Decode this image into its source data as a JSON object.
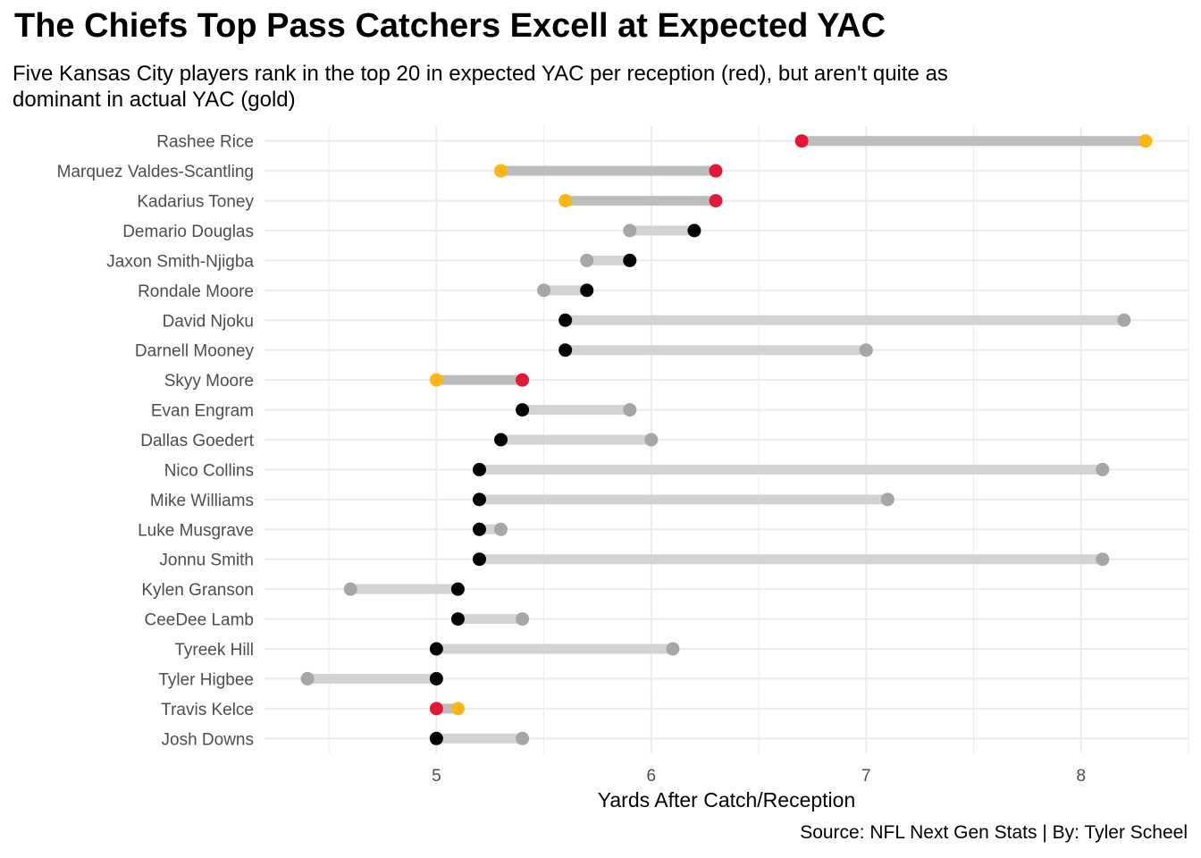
{
  "title": "The Chiefs Top Pass Catchers Excell at Expected YAC",
  "subtitle": "Five Kansas City players rank in the top 20 in expected YAC per reception (red), but aren't quite as\n dominant in actual YAC (gold)",
  "caption": "Source: NFL Next Gen Stats | By: Tyler Scheel",
  "colors": {
    "expected_chiefs": "#E31837",
    "actual_chiefs": "#FFB612",
    "expected_other": "#000000",
    "actual_other": "#A6A6A6",
    "segment_chiefs": "#BDBDBD",
    "segment_other": "#D3D3D3",
    "grid": "#EBEBEB"
  },
  "chart_data": {
    "type": "dumbbell",
    "xlabel": "Yards After Catch/Reception",
    "ylabel": "",
    "xlim": [
      4.2,
      8.5
    ],
    "xticks": [
      5,
      6,
      7,
      8
    ],
    "grid": true,
    "series": [
      {
        "name": "expected YAC per reception"
      },
      {
        "name": "actual YAC"
      }
    ],
    "players": [
      {
        "name": "Rashee Rice",
        "expected": 6.7,
        "actual": 8.3,
        "chiefs": true
      },
      {
        "name": "Marquez Valdes-Scantling",
        "expected": 6.3,
        "actual": 5.3,
        "chiefs": true
      },
      {
        "name": "Kadarius Toney",
        "expected": 6.3,
        "actual": 5.6,
        "chiefs": true
      },
      {
        "name": "Demario Douglas",
        "expected": 6.2,
        "actual": 5.9,
        "chiefs": false
      },
      {
        "name": "Jaxon Smith-Njigba",
        "expected": 5.9,
        "actual": 5.7,
        "chiefs": false
      },
      {
        "name": "Rondale Moore",
        "expected": 5.7,
        "actual": 5.5,
        "chiefs": false
      },
      {
        "name": "David Njoku",
        "expected": 5.6,
        "actual": 8.2,
        "chiefs": false
      },
      {
        "name": "Darnell Mooney",
        "expected": 5.6,
        "actual": 7.0,
        "chiefs": false
      },
      {
        "name": "Skyy Moore",
        "expected": 5.4,
        "actual": 5.0,
        "chiefs": true
      },
      {
        "name": "Evan Engram",
        "expected": 5.4,
        "actual": 5.9,
        "chiefs": false
      },
      {
        "name": "Dallas Goedert",
        "expected": 5.3,
        "actual": 6.0,
        "chiefs": false
      },
      {
        "name": "Nico Collins",
        "expected": 5.2,
        "actual": 8.1,
        "chiefs": false
      },
      {
        "name": "Mike Williams",
        "expected": 5.2,
        "actual": 7.1,
        "chiefs": false
      },
      {
        "name": "Luke Musgrave",
        "expected": 5.2,
        "actual": 5.3,
        "chiefs": false
      },
      {
        "name": "Jonnu Smith",
        "expected": 5.2,
        "actual": 8.1,
        "chiefs": false
      },
      {
        "name": "Kylen Granson",
        "expected": 5.1,
        "actual": 4.6,
        "chiefs": false
      },
      {
        "name": "CeeDee Lamb",
        "expected": 5.1,
        "actual": 5.4,
        "chiefs": false
      },
      {
        "name": "Tyreek Hill",
        "expected": 5.0,
        "actual": 6.1,
        "chiefs": false
      },
      {
        "name": "Tyler Higbee",
        "expected": 5.0,
        "actual": 4.4,
        "chiefs": false
      },
      {
        "name": "Travis Kelce",
        "expected": 5.0,
        "actual": 5.1,
        "chiefs": true
      },
      {
        "name": "Josh Downs",
        "expected": 5.0,
        "actual": 5.4,
        "chiefs": false
      }
    ]
  }
}
